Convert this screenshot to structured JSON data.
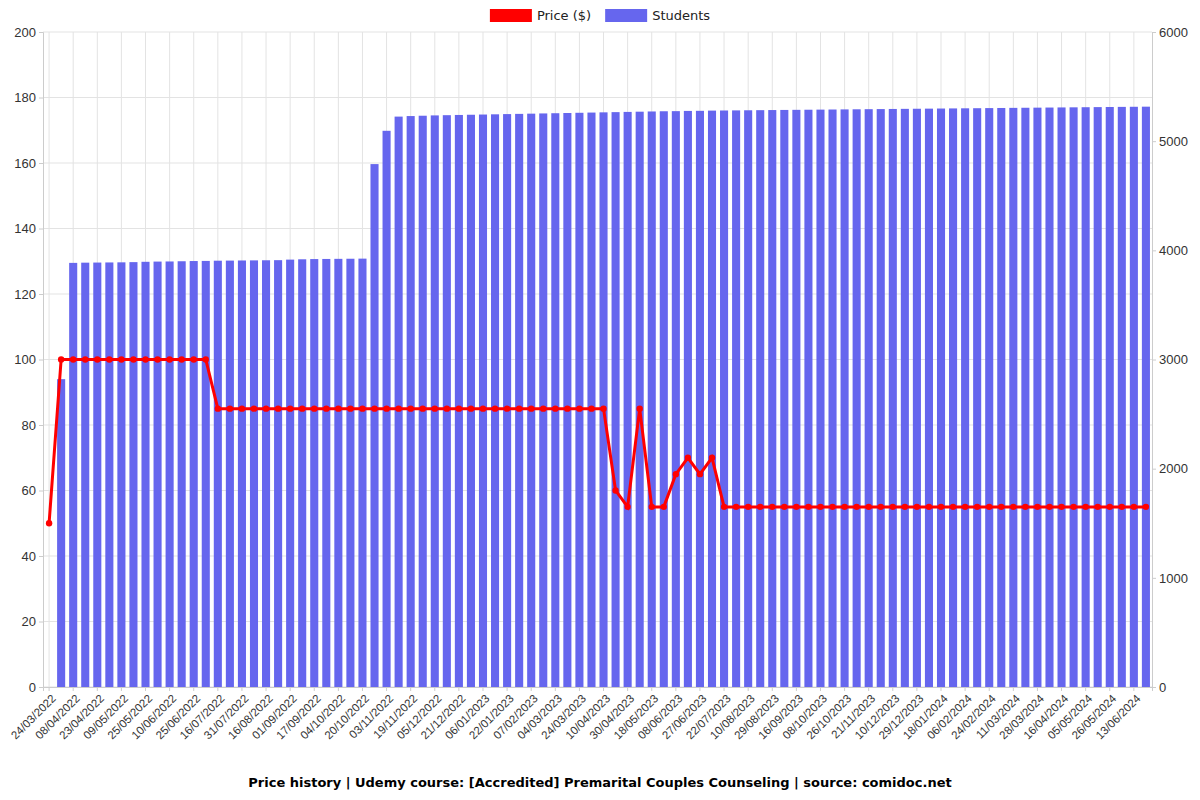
{
  "chart_data": {
    "type": "bar",
    "title": "Price history | Udemy course: [Accredited] Premarital Couples Counseling | source: comidoc.net",
    "categories": [
      "24/03/2022",
      null,
      "08/04/2022",
      null,
      "23/04/2022",
      null,
      "09/05/2022",
      null,
      "25/05/2022",
      null,
      "10/06/2022",
      null,
      "25/06/2022",
      null,
      "16/07/2022",
      null,
      "31/07/2022",
      null,
      "16/08/2022",
      null,
      "01/09/2022",
      null,
      "17/09/2022",
      null,
      "04/10/2022",
      null,
      "20/10/2022",
      null,
      "03/11/2022",
      null,
      "19/11/2022",
      null,
      "05/12/2022",
      null,
      "21/12/2022",
      null,
      "06/01/2023",
      null,
      "22/01/2023",
      null,
      "07/02/2023",
      null,
      "04/03/2023",
      null,
      "24/03/2023",
      null,
      "10/04/2023",
      null,
      "30/04/2023",
      null,
      "18/05/2023",
      null,
      "08/06/2023",
      null,
      "27/06/2023",
      null,
      "22/07/2023",
      null,
      "10/08/2023",
      null,
      "29/08/2023",
      null,
      "16/09/2023",
      null,
      "08/10/2023",
      null,
      "26/10/2023",
      null,
      "21/11/2023",
      null,
      "10/12/2023",
      null,
      "29/12/2023",
      null,
      "18/01/2024",
      null,
      "06/02/2024",
      null,
      "24/02/2024",
      null,
      "11/03/2024",
      null,
      "28/03/2024",
      null,
      "16/04/2024",
      null,
      "05/05/2024",
      null,
      "26/05/2024",
      null,
      "13/06/2024",
      null
    ],
    "series": [
      {
        "name": "Price ($)",
        "type": "line",
        "color": "#ff0000",
        "marker": "circle",
        "values": [
          50,
          100,
          100,
          100,
          100,
          100,
          100,
          100,
          100,
          100,
          100,
          100,
          100,
          100,
          85,
          85,
          85,
          85,
          85,
          85,
          85,
          85,
          85,
          85,
          85,
          85,
          85,
          85,
          85,
          85,
          85,
          85,
          85,
          85,
          85,
          85,
          85,
          85,
          85,
          85,
          85,
          85,
          85,
          85,
          85,
          85,
          85,
          60,
          55,
          85,
          55,
          55,
          65,
          70,
          65,
          70,
          55,
          55,
          55,
          55,
          55,
          55,
          55,
          55,
          55,
          55,
          55,
          55,
          55,
          55,
          55,
          55,
          55,
          55,
          55,
          55,
          55,
          55,
          55,
          55,
          55,
          55,
          55,
          55,
          55,
          55,
          55,
          55,
          55,
          55,
          55,
          55
        ]
      },
      {
        "name": "Students",
        "type": "bar",
        "axis": "y2",
        "color": "#6666ee",
        "values": [
          null,
          2820,
          3885,
          3887,
          3888,
          3889,
          3890,
          3892,
          3895,
          3897,
          3898,
          3900,
          3902,
          3903,
          3905,
          3906,
          3907,
          3908,
          3909,
          3910,
          3915,
          3918,
          3920,
          3921,
          3922,
          3923,
          3924,
          4790,
          5095,
          5225,
          5230,
          5233,
          5236,
          5238,
          5240,
          5242,
          5244,
          5246,
          5248,
          5250,
          5252,
          5254,
          5256,
          5258,
          5260,
          5262,
          5264,
          5266,
          5268,
          5270,
          5272,
          5274,
          5275,
          5277,
          5278,
          5280,
          5281,
          5282,
          5283,
          5284,
          5285,
          5286,
          5287,
          5288,
          5289,
          5290,
          5291,
          5292,
          5293,
          5294,
          5295,
          5296,
          5297,
          5298,
          5299,
          5300,
          5301,
          5302,
          5303,
          5304,
          5305,
          5306,
          5307,
          5308,
          5309,
          5310,
          5311,
          5312,
          5313,
          5314,
          5315,
          5316
        ]
      }
    ],
    "ylim": [
      0,
      200
    ],
    "yticks": [
      0,
      20,
      40,
      60,
      80,
      100,
      120,
      140,
      160,
      180,
      200
    ],
    "y2lim": [
      0,
      6000
    ],
    "y2ticks": [
      0,
      1000,
      2000,
      3000,
      4000,
      5000,
      6000
    ],
    "grid": true,
    "legend": "top"
  }
}
